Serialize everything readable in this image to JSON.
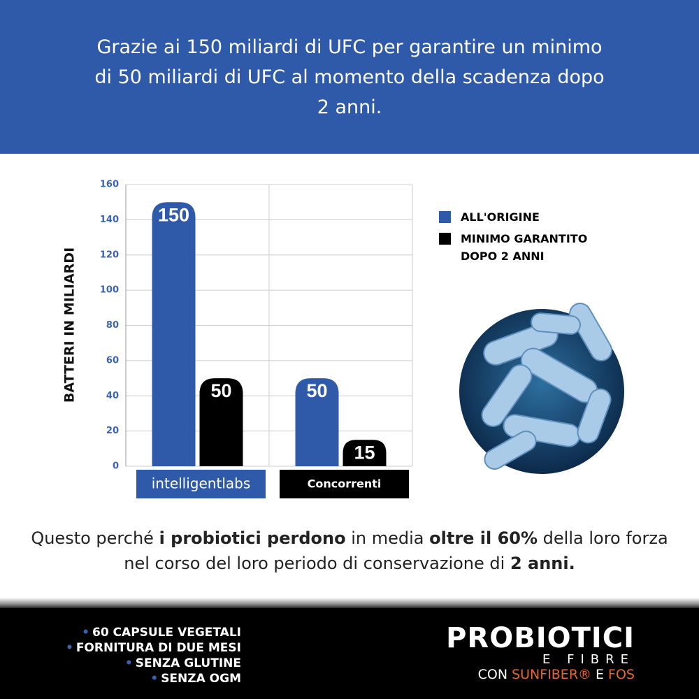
{
  "header": {
    "text": "Grazie ai 150 miliardi di UFC per garantire un minimo di 50 miliardi di UFC al momento della scadenza dopo 2 anni."
  },
  "chart_data": {
    "type": "bar",
    "ylabel": "BATTERI IN MILIARDI",
    "categories": [
      "intelligentlabs",
      "Concorrenti"
    ],
    "category_colors": [
      "#2f5aaa",
      "#000000"
    ],
    "series": [
      {
        "name": "ALL'ORIGINE",
        "color": "#2f5aaa",
        "values": [
          150,
          50
        ]
      },
      {
        "name": "MINIMO GARANTITO DOPO 2 ANNI",
        "color": "#000000",
        "values": [
          50,
          15
        ]
      }
    ],
    "ylim": [
      0,
      160
    ],
    "yticks": [
      0,
      20,
      40,
      60,
      80,
      100,
      120,
      140,
      160
    ],
    "grid": true
  },
  "note": [
    "Questo perché ",
    "i probiotici perdono",
    " in media ",
    "oltre il 60%",
    " della loro forza nel corso del loro periodo di conservazione di ",
    "2 anni."
  ],
  "footer": {
    "features": [
      "60 CAPSULE VEGETALI",
      "FORNITURA DI DUE MESI",
      "SENZA GLUTINE",
      "SENZA OGM"
    ],
    "brand": {
      "title": "PROBIOTICI",
      "subtitle": "E FIBRE",
      "tagline": [
        "CON",
        "SUNFIBER®",
        "E",
        "FOS"
      ]
    }
  }
}
